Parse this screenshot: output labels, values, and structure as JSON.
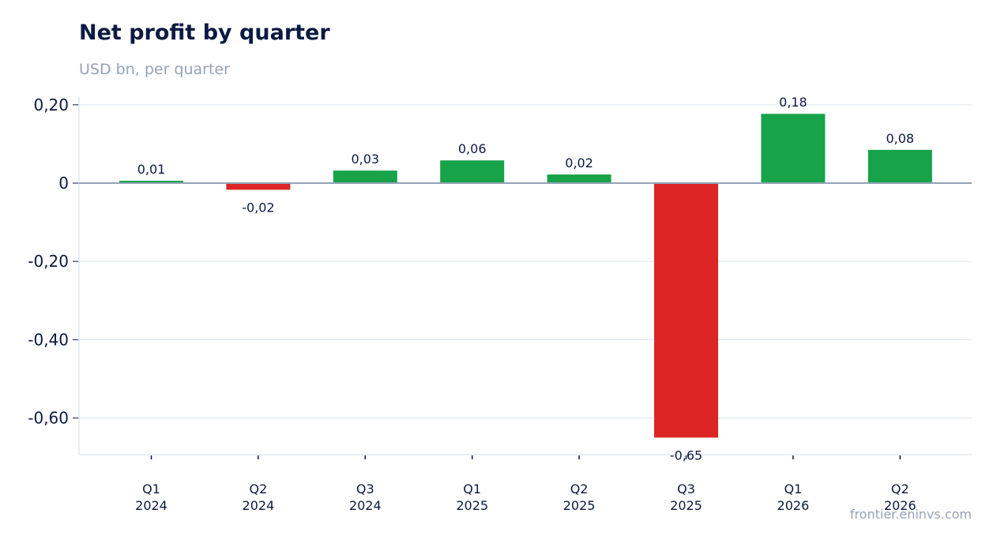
{
  "chart_data": {
    "type": "bar",
    "title": "Net profit by quarter",
    "subtitle": "USD bn, per quarter",
    "categories": [
      [
        "Q1",
        "2024"
      ],
      [
        "Q2",
        "2024"
      ],
      [
        "Q3",
        "2024"
      ],
      [
        "Q1",
        "2025"
      ],
      [
        "Q2",
        "2025"
      ],
      [
        "Q3",
        "2025"
      ],
      [
        "Q1",
        "2026"
      ],
      [
        "Q2",
        "2026"
      ]
    ],
    "values": [
      0.006,
      -0.017,
      0.032,
      0.058,
      0.022,
      -0.65,
      0.177,
      0.085
    ],
    "data_labels": [
      "0,01",
      "-0,02",
      "0,03",
      "0,06",
      "0,02",
      "-0,65",
      "0,18",
      "0,08"
    ],
    "ylim": [
      -0.69,
      0.22
    ],
    "yticks": [
      0.2,
      0,
      -0.2,
      -0.4,
      -0.6
    ],
    "ytick_labels": [
      "0,20",
      "0",
      "-0,20",
      "-0,40",
      "-0,60"
    ],
    "grid": true,
    "colors": {
      "positive": "#16a34a",
      "negative": "#dc2626",
      "zero_line": "#94a3b8",
      "grid": "#e2e8f0"
    }
  },
  "source": "frontier.eninvs.com"
}
